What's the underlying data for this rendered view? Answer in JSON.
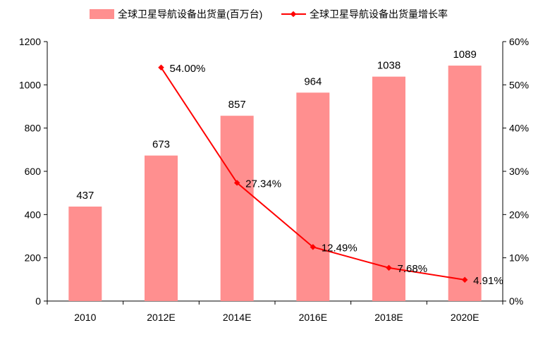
{
  "legend": {
    "bar_label": "全球卫星导航设备出货量(百万台)",
    "line_label": "全球卫星导航设备出货量增长率"
  },
  "colors": {
    "bar": "#ff8f8f",
    "line": "#ff0000",
    "axis": "#000000",
    "text": "#000000"
  },
  "chart_data": {
    "type": "bar",
    "categories": [
      "2010",
      "2012E",
      "2014E",
      "2016E",
      "2018E",
      "2020E"
    ],
    "series": [
      {
        "name": "全球卫星导航设备出货量(百万台)",
        "type": "bar",
        "axis": "left",
        "values": [
          437,
          673,
          857,
          964,
          1038,
          1089
        ],
        "labels": [
          "437",
          "673",
          "857",
          "964",
          "1038",
          "1089"
        ]
      },
      {
        "name": "全球卫星导航设备出货量增长率",
        "type": "line",
        "axis": "right",
        "values": [
          null,
          54.0,
          27.34,
          12.49,
          7.68,
          4.91
        ],
        "labels": [
          "",
          "54.00%",
          "27.34%",
          "12.49%",
          "7.68%",
          "4.91%"
        ]
      }
    ],
    "y_left": {
      "ylim": [
        0,
        1200
      ],
      "ticks": [
        "0",
        "200",
        "400",
        "600",
        "800",
        "1000",
        "1200"
      ]
    },
    "y_right": {
      "ylim": [
        0,
        60
      ],
      "ticks": [
        "0%",
        "10%",
        "20%",
        "30%",
        "40%",
        "50%",
        "60%"
      ]
    },
    "grid": false,
    "legend_position": "top"
  }
}
